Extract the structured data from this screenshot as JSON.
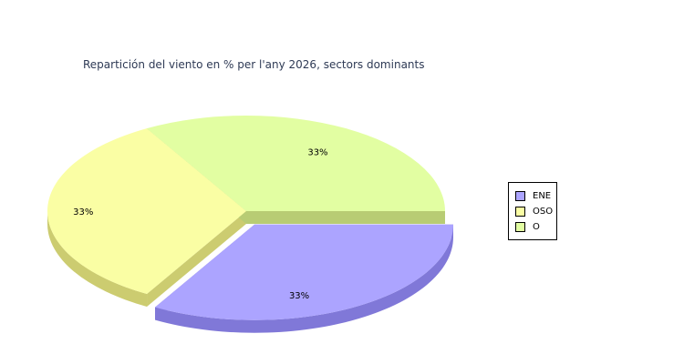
{
  "title": "Repartición del viento en % per l'any 2026, sectors dominants",
  "chart_data": {
    "type": "pie",
    "title": "Repartición del viento en % per l'any 2026, sectors dominants",
    "slices": [
      {
        "name": "ENE",
        "value": 33.33,
        "label": "33%",
        "color": "#aca4ff",
        "side": "#8078d8",
        "exploded": true
      },
      {
        "name": "OSO",
        "value": 33.33,
        "label": "33%",
        "color": "#fafea4",
        "side": "#cccc70",
        "exploded": false
      },
      {
        "name": "O",
        "value": 33.34,
        "label": "33%",
        "color": "#e2fea2",
        "side": "#b8cc74",
        "exploded": false
      }
    ],
    "legend_position": "right"
  }
}
